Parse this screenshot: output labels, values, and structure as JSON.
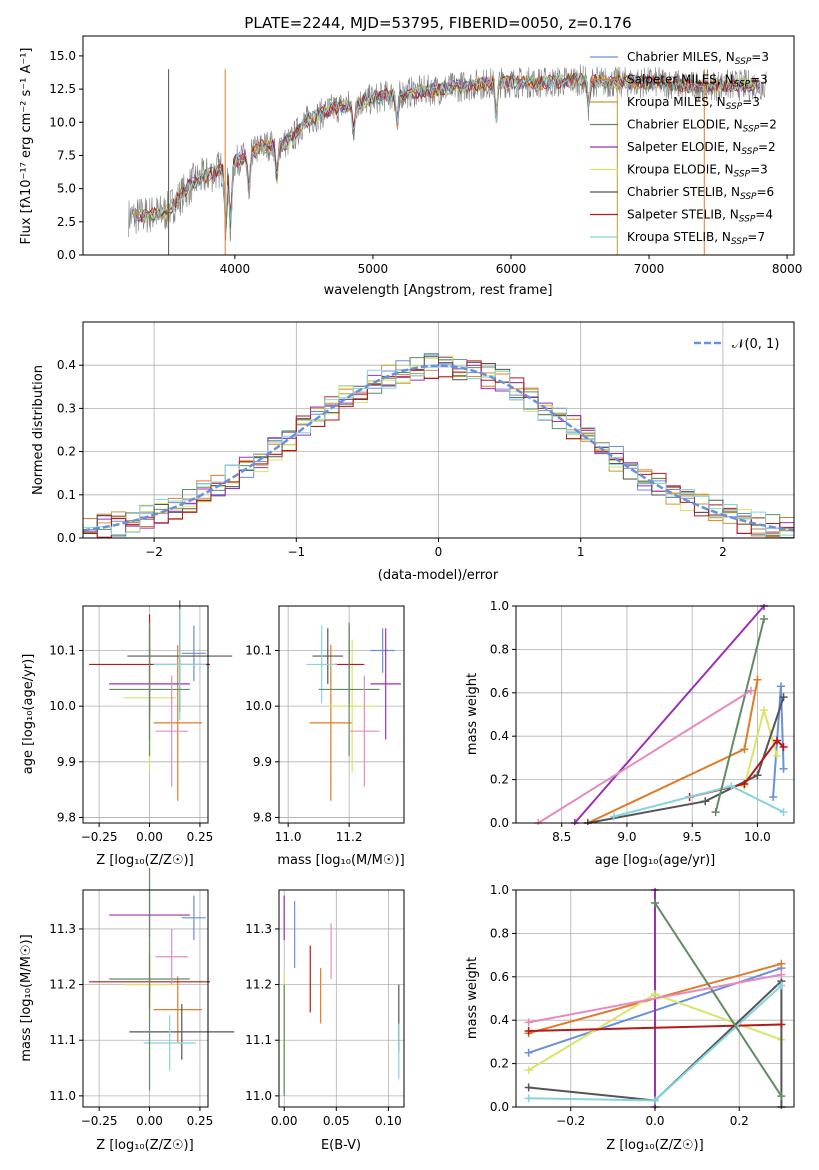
{
  "colors": {
    "c0": "#6a8fdc",
    "c1": "#e07b27",
    "c2": "#c49a3c",
    "c3": "#5f8c62",
    "c4": "#9b30b5",
    "c5": "#d8e567",
    "c6": "#555555",
    "c7": "#b31b1b",
    "c8": "#86d4df",
    "pink": "#e68bbf",
    "gray": "#808080",
    "normal": "#6a8fdc"
  },
  "spectrum": {
    "title": "PLATE=2244, MJD=53795, FIBERID=0050, z=0.176",
    "xlabel": "wavelength [Angstrom, rest frame]",
    "ylabel": "Flux [fλ10⁻¹⁷ erg cm⁻² s⁻¹ A⁻¹]",
    "legend": [
      {
        "label": "Chabrier MILES, N",
        "sub": "SSP",
        "eq": "=3",
        "color": "c0"
      },
      {
        "label": "Salpeter MILES, N",
        "sub": "SSP",
        "eq": "=3",
        "color": "c1"
      },
      {
        "label": "Kroupa MILES, N",
        "sub": "SSP",
        "eq": "=3",
        "color": "c2"
      },
      {
        "label": "Chabrier ELODIE, N",
        "sub": "SSP",
        "eq": "=2",
        "color": "c3"
      },
      {
        "label": "Salpeter ELODIE, N",
        "sub": "SSP",
        "eq": "=2",
        "color": "c4"
      },
      {
        "label": "Kroupa ELODIE, N",
        "sub": "SSP",
        "eq": "=3",
        "color": "c5"
      },
      {
        "label": "Chabrier STELIB, N",
        "sub": "SSP",
        "eq": "=6",
        "color": "c6"
      },
      {
        "label": "Salpeter STELIB, N",
        "sub": "SSP",
        "eq": "=4",
        "color": "c7"
      },
      {
        "label": "Kroupa STELIB, N",
        "sub": "SSP",
        "eq": "=7",
        "color": "c8"
      }
    ]
  },
  "histogram": {
    "xlabel": "(data-model)/error",
    "ylabel": "Normed distribution",
    "legend_label": "𝒩(0, 1)"
  },
  "age_vs_z": {
    "xlabel": "Z [log₁₀(Z/Z☉)]",
    "ylabel": "age  [log₁₀(age/yr)]"
  },
  "age_vs_mass": {
    "xlabel": "mass [log₁₀(M/M☉)]"
  },
  "weight_vs_age": {
    "xlabel": "age  [log₁₀(age/yr)]",
    "ylabel": "mass weight"
  },
  "mass_vs_z": {
    "xlabel": "Z [log₁₀(Z/Z☉)]",
    "ylabel": "mass [log₁₀(M/M☉)]"
  },
  "mass_vs_ebv": {
    "xlabel": "E(B-V)"
  },
  "weight_vs_z": {
    "xlabel": "Z [log₁₀(Z/Z☉)]",
    "ylabel": "mass weight"
  },
  "chart_data": [
    {
      "type": "line",
      "id": "spectrum",
      "xlim": [
        2900,
        8050
      ],
      "ylim": [
        0,
        16.5
      ],
      "xticks": [
        4000,
        5000,
        6000,
        7000,
        8000
      ],
      "yticks": [
        0.0,
        2.5,
        5.0,
        7.5,
        10.0,
        12.5,
        15.0
      ],
      "grid": false,
      "legend_position": "upper right",
      "series": [
        {
          "data_color": "gray",
          "kind": "observed spectrum",
          "x": [
            3200,
            3500,
            3700,
            4000,
            4200,
            4400,
            4500,
            4700,
            4900,
            5100,
            5300,
            5500,
            5700,
            5900,
            6100,
            6300,
            6500,
            6700,
            6900,
            7100,
            7300,
            7500,
            7700,
            7850
          ],
          "y": [
            2.8,
            3.2,
            5.5,
            7.0,
            8.2,
            8.5,
            10.0,
            11.0,
            11.5,
            12.0,
            12.3,
            12.5,
            12.8,
            13.0,
            13.0,
            13.0,
            13.2,
            13.0,
            13.0,
            13.0,
            12.7,
            12.8,
            12.8,
            12.8
          ]
        }
      ]
    },
    {
      "type": "bar",
      "id": "residual_histogram",
      "xlim": [
        -2.5,
        2.5
      ],
      "ylim": [
        0,
        0.5
      ],
      "xticks": [
        -2,
        -1,
        0,
        1,
        2
      ],
      "yticks": [
        0.0,
        0.1,
        0.2,
        0.3,
        0.4
      ],
      "grid": true,
      "bin_width": 0.1,
      "bin_start": -2.5,
      "reference_curve": "normal pdf mean 0 sigma 1, dashed",
      "series_mean": [
        0.018,
        0.022,
        0.027,
        0.033,
        0.04,
        0.048,
        0.058,
        0.069,
        0.081,
        0.095,
        0.111,
        0.127,
        0.145,
        0.164,
        0.184,
        0.204,
        0.225,
        0.245,
        0.264,
        0.283,
        0.301,
        0.317,
        0.331,
        0.344,
        0.355,
        0.364,
        0.372,
        0.378,
        0.383,
        0.386,
        0.398,
        0.398,
        0.397,
        0.396,
        0.393,
        0.39,
        0.385,
        0.38,
        0.373,
        0.366,
        0.358,
        0.349,
        0.338,
        0.327,
        0.315,
        0.303,
        0.29,
        0.276,
        0.262,
        0.248
      ]
    },
    {
      "type": "scatter",
      "id": "age_vs_Z",
      "xlim": [
        -0.33,
        0.29
      ],
      "ylim": [
        9.79,
        10.18
      ],
      "xticks": [
        -0.25,
        0.0,
        0.25
      ],
      "yticks": [
        9.8,
        9.9,
        10.0,
        10.1
      ],
      "grid": true,
      "points": [
        {
          "color": "c0",
          "x": 0.22,
          "y": 10.095,
          "xerr": 0.06,
          "yerr": 0.05
        },
        {
          "color": "c1",
          "x": 0.14,
          "y": 9.97,
          "xerr": 0.12,
          "yerr": 0.14
        },
        {
          "color": "c4",
          "x": 0.0,
          "y": 10.04,
          "xerr": 0.2,
          "yerr": 0.1
        },
        {
          "color": "c5",
          "x": 0.0,
          "y": 10.015,
          "xerr": 0.13,
          "yerr": 0.13
        },
        {
          "color": "c6",
          "x": 0.15,
          "y": 10.09,
          "xerr": 0.26,
          "yerr": 0.1
        },
        {
          "color": "c7",
          "x": 0.0,
          "y": 10.075,
          "xerr": 0.3,
          "yerr": 0.09
        },
        {
          "color": "c8",
          "x": 0.15,
          "y": 10.075,
          "xerr": 0.13,
          "yerr": 0.1
        },
        {
          "color": "c3",
          "x": 0.0,
          "y": 10.03,
          "xerr": 0.2,
          "yerr": 0.12
        },
        {
          "color": "pink",
          "x": 0.11,
          "y": 9.955,
          "xerr": 0.08,
          "yerr": 0.1
        }
      ]
    },
    {
      "type": "scatter",
      "id": "age_vs_mass",
      "xlim": [
        10.97,
        11.38
      ],
      "ylim": [
        9.79,
        10.18
      ],
      "xticks": [
        11.0,
        11.2
      ],
      "yticks": [
        9.8,
        9.9,
        10.0,
        10.1
      ],
      "grid": true,
      "points": [
        {
          "color": "c0",
          "x": 11.31,
          "y": 10.1,
          "xerr": 0.04,
          "yerr": 0.04
        },
        {
          "color": "c1",
          "x": 11.14,
          "y": 9.97,
          "xerr": 0.07,
          "yerr": 0.14
        },
        {
          "color": "c4",
          "x": 11.32,
          "y": 10.04,
          "xerr": 0.05,
          "yerr": 0.1
        },
        {
          "color": "c5",
          "x": 11.21,
          "y": 10.0,
          "xerr": 0.08,
          "yerr": 0.12
        },
        {
          "color": "c6",
          "x": 11.13,
          "y": 10.09,
          "xerr": 0.05,
          "yerr": 0.05
        },
        {
          "color": "c7",
          "x": 11.2,
          "y": 10.075,
          "xerr": 0.05,
          "yerr": 0.07
        },
        {
          "color": "c8",
          "x": 11.11,
          "y": 10.075,
          "xerr": 0.05,
          "yerr": 0.07
        },
        {
          "color": "c3",
          "x": 11.2,
          "y": 10.03,
          "xerr": 0.1,
          "yerr": 0.12
        },
        {
          "color": "pink",
          "x": 11.25,
          "y": 9.955,
          "xerr": 0.05,
          "yerr": 0.1
        }
      ]
    },
    {
      "type": "line",
      "id": "weight_vs_age",
      "xlim": [
        8.15,
        10.28
      ],
      "ylim": [
        0,
        1.0
      ],
      "xticks": [
        8.5,
        9.0,
        9.5,
        10.0
      ],
      "yticks": [
        0.0,
        0.2,
        0.4,
        0.6,
        0.8,
        1.0
      ],
      "grid": true,
      "series": [
        {
          "color": "c0",
          "x": [
            10.12,
            10.18,
            10.2
          ],
          "y": [
            0.12,
            0.63,
            0.25
          ]
        },
        {
          "color": "c1",
          "x": [
            8.7,
            9.9,
            10.0
          ],
          "y": [
            0.0,
            0.34,
            0.66
          ]
        },
        {
          "color": "c4",
          "x": [
            8.6,
            10.05
          ],
          "y": [
            0.0,
            1.0
          ]
        },
        {
          "color": "c5",
          "x": [
            9.9,
            10.05,
            10.15
          ],
          "y": [
            0.17,
            0.52,
            0.31
          ]
        },
        {
          "color": "c6",
          "x": [
            8.7,
            9.6,
            10.0,
            10.2
          ],
          "y": [
            0.0,
            0.1,
            0.22,
            0.58
          ]
        },
        {
          "color": "c7",
          "x": [
            9.48,
            9.9,
            10.15,
            10.2
          ],
          "y": [
            0.12,
            0.18,
            0.38,
            0.35
          ]
        },
        {
          "color": "c8",
          "x": [
            8.9,
            9.8,
            10.2
          ],
          "y": [
            0.03,
            0.17,
            0.05
          ]
        },
        {
          "color": "c3",
          "x": [
            9.68,
            10.05
          ],
          "y": [
            0.05,
            0.94
          ]
        },
        {
          "color": "pink",
          "x": [
            8.32,
            9.95
          ],
          "y": [
            0.0,
            0.61
          ]
        }
      ]
    },
    {
      "type": "scatter",
      "id": "mass_vs_Z",
      "xlim": [
        -0.33,
        0.29
      ],
      "ylim": [
        10.98,
        11.37
      ],
      "xticks": [
        -0.25,
        0.0,
        0.25
      ],
      "yticks": [
        11.0,
        11.1,
        11.2,
        11.3
      ],
      "grid": true,
      "points": [
        {
          "color": "c0",
          "x": 0.22,
          "y": 11.32,
          "xerr": 0.06,
          "yerr": 0.04
        },
        {
          "color": "c1",
          "x": 0.14,
          "y": 11.155,
          "xerr": 0.12,
          "yerr": 0.06
        },
        {
          "color": "c4",
          "x": 0.0,
          "y": 11.325,
          "xerr": 0.2,
          "yerr": 0.04
        },
        {
          "color": "c5",
          "x": 0.0,
          "y": 11.2,
          "xerr": 0.13,
          "yerr": 0.06
        },
        {
          "color": "c6",
          "x": 0.16,
          "y": 11.115,
          "xerr": 0.26,
          "yerr": 0.05
        },
        {
          "color": "c7",
          "x": 0.0,
          "y": 11.205,
          "xerr": 0.3,
          "yerr": 0.05
        },
        {
          "color": "c8",
          "x": 0.1,
          "y": 11.095,
          "xerr": 0.13,
          "yerr": 0.05
        },
        {
          "color": "c3",
          "x": 0.0,
          "y": 11.21,
          "xerr": 0.2,
          "yerr": 0.2
        },
        {
          "color": "pink",
          "x": 0.11,
          "y": 11.25,
          "xerr": 0.08,
          "yerr": 0.05
        }
      ]
    },
    {
      "type": "scatter",
      "id": "mass_vs_EBV",
      "xlim": [
        -0.005,
        0.115
      ],
      "ylim": [
        10.98,
        11.37
      ],
      "xticks": [
        0.0,
        0.05,
        0.1
      ],
      "yticks": [
        11.0,
        11.1,
        11.2,
        11.3
      ],
      "grid": true,
      "points": [
        {
          "color": "c0",
          "x": 0.01,
          "y": 11.29,
          "yerr": 0.06
        },
        {
          "color": "c1",
          "x": 0.035,
          "y": 11.18,
          "yerr": 0.05
        },
        {
          "color": "c4",
          "x": 0.0,
          "y": 11.32,
          "yerr": 0.04
        },
        {
          "color": "c5",
          "x": 0.0,
          "y": 11.15,
          "yerr": 0.07
        },
        {
          "color": "c6",
          "x": 0.11,
          "y": 11.14,
          "yerr": 0.06
        },
        {
          "color": "c7",
          "x": 0.025,
          "y": 11.21,
          "yerr": 0.06
        },
        {
          "color": "c8",
          "x": 0.11,
          "y": 11.08,
          "yerr": 0.05
        },
        {
          "color": "c3",
          "x": 0.0,
          "y": 11.1,
          "yerr": 0.1
        },
        {
          "color": "pink",
          "x": 0.045,
          "y": 11.26,
          "yerr": 0.05
        }
      ]
    },
    {
      "type": "line",
      "id": "weight_vs_Z",
      "xlim": [
        -0.33,
        0.33
      ],
      "ylim": [
        0,
        1.0
      ],
      "xticks": [
        -0.2,
        0.0,
        0.2
      ],
      "yticks": [
        0.0,
        0.2,
        0.4,
        0.6,
        0.8,
        1.0
      ],
      "grid": true,
      "series": [
        {
          "color": "c0",
          "x": [
            -0.3,
            0.3
          ],
          "y": [
            0.25,
            0.64
          ]
        },
        {
          "color": "c1",
          "x": [
            -0.3,
            0.3
          ],
          "y": [
            0.34,
            0.66
          ]
        },
        {
          "color": "c4",
          "x": [
            0.0,
            0.0
          ],
          "y": [
            0.0,
            1.0
          ]
        },
        {
          "color": "c5",
          "x": [
            -0.3,
            0.0,
            0.3
          ],
          "y": [
            0.17,
            0.52,
            0.31
          ]
        },
        {
          "color": "c6",
          "x": [
            -0.3,
            0.0,
            0.3,
            0.3
          ],
          "y": [
            0.09,
            0.03,
            0.58,
            0.0
          ]
        },
        {
          "color": "c7",
          "x": [
            -0.3,
            0.3
          ],
          "y": [
            0.35,
            0.38
          ]
        },
        {
          "color": "c8",
          "x": [
            -0.3,
            0.0,
            0.3
          ],
          "y": [
            0.04,
            0.03,
            0.56
          ]
        },
        {
          "color": "c3",
          "x": [
            0.0,
            0.3
          ],
          "y": [
            0.94,
            0.05
          ]
        },
        {
          "color": "pink",
          "x": [
            -0.3,
            0.3
          ],
          "y": [
            0.39,
            0.61
          ]
        }
      ]
    }
  ]
}
